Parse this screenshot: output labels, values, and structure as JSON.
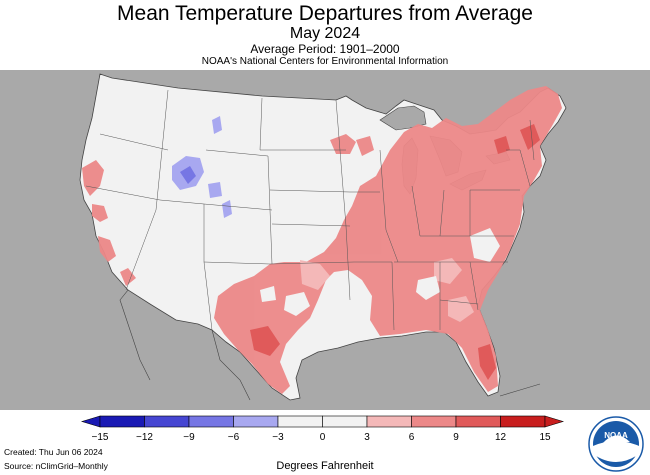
{
  "header": {
    "title": "Mean Temperature Departures from Average",
    "subtitle": "May 2024",
    "period": "Average Period: 1901–2000",
    "agency": "NOAA's National Centers for Environmental Information"
  },
  "legend": {
    "ticks": [
      "−15",
      "−12",
      "−9",
      "−6",
      "−3",
      "0",
      "3",
      "6",
      "9",
      "12",
      "15"
    ],
    "colors": [
      "#1a1ab4",
      "#4646d2",
      "#7676e4",
      "#a8a8f0",
      "#f2f2f2",
      "#f2f2f2",
      "#f4b8b8",
      "#ec8888",
      "#e05a5a",
      "#c81e1e"
    ],
    "units": "Degrees Fahrenheit"
  },
  "footer": {
    "created": "Created: Thu Jun 06 2024",
    "source": "Source: nClimGrid–Monthly"
  },
  "colors": {
    "background_land": "#a9a9a9",
    "us_land": "#f2f2f2",
    "warm_light": "#f4b8b8",
    "warm_medium": "#ec8888",
    "cool_light": "#a8a8f0",
    "cool_medium": "#7676e4",
    "noaa_blue": "#1a5aa8"
  },
  "logo": {
    "text": "NOAA"
  }
}
